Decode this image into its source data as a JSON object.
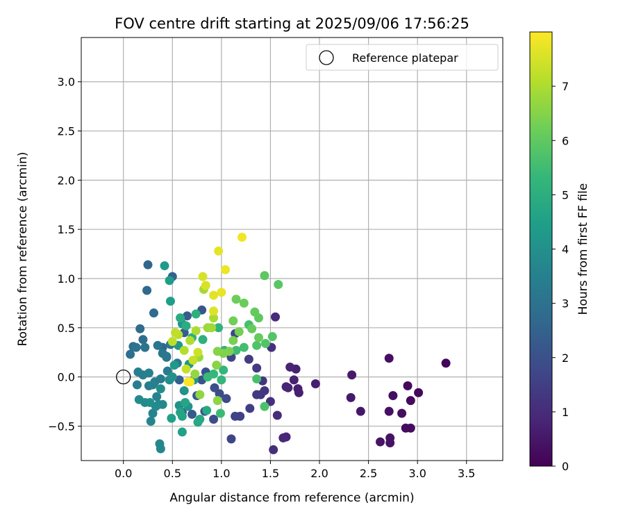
{
  "chart_data": {
    "type": "scatter",
    "title": "FOV centre drift starting at 2025/09/06 17:56:25",
    "xlabel": "Angular distance from reference (arcmin)",
    "ylabel": "Rotation from reference (arcmin)",
    "xlim": [
      -0.43,
      3.87
    ],
    "ylim": [
      -0.85,
      3.45
    ],
    "x_ticks": [
      0.0,
      0.5,
      1.0,
      1.5,
      2.0,
      2.5,
      3.0,
      3.5
    ],
    "x_tick_labels": [
      "0.0",
      "0.5",
      "1.0",
      "1.5",
      "2.0",
      "2.5",
      "3.0",
      "3.5"
    ],
    "y_ticks": [
      -0.5,
      0.0,
      0.5,
      1.0,
      1.5,
      2.0,
      2.5,
      3.0
    ],
    "y_tick_labels": [
      "−0.5",
      "0.0",
      "0.5",
      "1.0",
      "1.5",
      "2.0",
      "2.5",
      "3.0"
    ],
    "grid": true,
    "legend": {
      "position": "top-right",
      "entries": [
        {
          "label": "Reference platepar",
          "marker": "open-circle"
        }
      ]
    },
    "reference_point": {
      "x": 0.0,
      "y": 0.0
    },
    "colorbar": {
      "label": "Hours from first FF file",
      "range": [
        0,
        8
      ],
      "ticks": [
        0,
        1,
        2,
        3,
        4,
        5,
        6,
        7
      ],
      "tick_labels": [
        "0",
        "1",
        "2",
        "3",
        "4",
        "5",
        "6",
        "7"
      ],
      "colormap": "viridis"
    },
    "colormap_stops": [
      "#440154",
      "#482878",
      "#3e4989",
      "#31688e",
      "#26828e",
      "#1f9e89",
      "#35b779",
      "#6ece58",
      "#b5de2b",
      "#fde725"
    ],
    "points": [
      {
        "x": 3.29,
        "y": 0.14,
        "c": 0.1
      },
      {
        "x": 3.01,
        "y": -0.16,
        "c": 0.15
      },
      {
        "x": 2.93,
        "y": -0.24,
        "c": 0.2
      },
      {
        "x": 2.9,
        "y": -0.09,
        "c": 0.2
      },
      {
        "x": 2.93,
        "y": -0.52,
        "c": 0.25
      },
      {
        "x": 2.88,
        "y": -0.52,
        "c": 0.25
      },
      {
        "x": 2.84,
        "y": -0.37,
        "c": 0.3
      },
      {
        "x": 2.75,
        "y": -0.19,
        "c": 0.3
      },
      {
        "x": 2.71,
        "y": 0.19,
        "c": 0.35
      },
      {
        "x": 2.71,
        "y": -0.35,
        "c": 0.35
      },
      {
        "x": 2.72,
        "y": -0.62,
        "c": 0.4
      },
      {
        "x": 2.72,
        "y": -0.67,
        "c": 0.4
      },
      {
        "x": 2.62,
        "y": -0.66,
        "c": 0.45
      },
      {
        "x": 2.42,
        "y": -0.35,
        "c": 0.5
      },
      {
        "x": 2.32,
        "y": -0.21,
        "c": 0.55
      },
      {
        "x": 2.33,
        "y": 0.02,
        "c": 0.6
      },
      {
        "x": 1.96,
        "y": -0.07,
        "c": 0.65
      },
      {
        "x": 1.79,
        "y": -0.16,
        "c": 0.7
      },
      {
        "x": 1.78,
        "y": -0.12,
        "c": 0.7
      },
      {
        "x": 1.76,
        "y": 0.08,
        "c": 0.75
      },
      {
        "x": 1.74,
        "y": -0.03,
        "c": 0.75
      },
      {
        "x": 1.7,
        "y": 0.1,
        "c": 0.8
      },
      {
        "x": 1.68,
        "y": -0.11,
        "c": 0.8
      },
      {
        "x": 1.66,
        "y": -0.1,
        "c": 0.85
      },
      {
        "x": 1.66,
        "y": -0.61,
        "c": 0.85
      },
      {
        "x": 1.63,
        "y": -0.62,
        "c": 0.9
      },
      {
        "x": 1.55,
        "y": 0.61,
        "c": 0.95
      },
      {
        "x": 1.57,
        "y": -0.39,
        "c": 1.0
      },
      {
        "x": 1.53,
        "y": -0.74,
        "c": 1.05
      },
      {
        "x": 1.5,
        "y": -0.25,
        "c": 1.1
      },
      {
        "x": 1.51,
        "y": 0.3,
        "c": 1.15
      },
      {
        "x": 1.44,
        "y": -0.14,
        "c": 1.2
      },
      {
        "x": 1.42,
        "y": -0.04,
        "c": 1.25
      },
      {
        "x": 1.4,
        "y": -0.18,
        "c": 1.3
      },
      {
        "x": 1.36,
        "y": -0.18,
        "c": 1.35
      },
      {
        "x": 1.36,
        "y": 0.09,
        "c": 1.4
      },
      {
        "x": 1.28,
        "y": 0.18,
        "c": 1.45
      },
      {
        "x": 1.29,
        "y": -0.32,
        "c": 1.5
      },
      {
        "x": 1.19,
        "y": -0.4,
        "c": 1.55
      },
      {
        "x": 1.14,
        "y": -0.4,
        "c": 1.6
      },
      {
        "x": 1.1,
        "y": -0.63,
        "c": 1.65
      },
      {
        "x": 1.1,
        "y": 0.2,
        "c": 1.7
      },
      {
        "x": 1.14,
        "y": 0.44,
        "c": 1.75
      },
      {
        "x": 1.05,
        "y": -0.22,
        "c": 1.8
      },
      {
        "x": 0.98,
        "y": -0.17,
        "c": 1.85
      },
      {
        "x": 0.92,
        "y": -0.43,
        "c": 1.9
      },
      {
        "x": 0.93,
        "y": -0.11,
        "c": 1.95
      },
      {
        "x": 0.83,
        "y": -0.35,
        "c": 2.0
      },
      {
        "x": 0.84,
        "y": 0.05,
        "c": 2.05
      },
      {
        "x": 0.8,
        "y": -0.03,
        "c": 2.1
      },
      {
        "x": 0.8,
        "y": 0.68,
        "c": 2.15
      },
      {
        "x": 0.75,
        "y": -0.19,
        "c": 2.2
      },
      {
        "x": 0.7,
        "y": -0.38,
        "c": 2.25
      },
      {
        "x": 0.65,
        "y": 0.62,
        "c": 2.3
      },
      {
        "x": 0.62,
        "y": 0.45,
        "c": 2.35
      },
      {
        "x": 0.6,
        "y": -0.36,
        "c": 2.4
      },
      {
        "x": 0.57,
        "y": -0.03,
        "c": 2.45
      },
      {
        "x": 0.5,
        "y": 1.02,
        "c": 2.5
      },
      {
        "x": 0.44,
        "y": 0.2,
        "c": 2.55
      },
      {
        "x": 0.4,
        "y": 0.3,
        "c": 2.6
      },
      {
        "x": 0.25,
        "y": 1.14,
        "c": 2.65
      },
      {
        "x": 0.24,
        "y": 0.88,
        "c": 2.7
      },
      {
        "x": 0.31,
        "y": 0.65,
        "c": 2.75
      },
      {
        "x": 0.17,
        "y": 0.49,
        "c": 2.8
      },
      {
        "x": 0.2,
        "y": 0.38,
        "c": 2.85
      },
      {
        "x": 0.1,
        "y": 0.31,
        "c": 2.9
      },
      {
        "x": 0.07,
        "y": 0.23,
        "c": 2.95
      },
      {
        "x": 0.13,
        "y": 0.3,
        "c": 3.0
      },
      {
        "x": 0.22,
        "y": 0.3,
        "c": 3.05
      },
      {
        "x": 0.35,
        "y": 0.32,
        "c": 3.1
      },
      {
        "x": 0.4,
        "y": 0.24,
        "c": 3.15
      },
      {
        "x": 0.44,
        "y": 0.21,
        "c": 3.2
      },
      {
        "x": 0.48,
        "y": 0.33,
        "c": 3.2
      },
      {
        "x": 0.55,
        "y": 0.14,
        "c": 3.25
      },
      {
        "x": 0.45,
        "y": 0.06,
        "c": 3.3
      },
      {
        "x": 0.38,
        "y": -0.02,
        "c": 3.3
      },
      {
        "x": 0.32,
        "y": -0.05,
        "c": 3.35
      },
      {
        "x": 0.26,
        "y": -0.09,
        "c": 3.35
      },
      {
        "x": 0.2,
        "y": 0.02,
        "c": 3.4
      },
      {
        "x": 0.14,
        "y": -0.08,
        "c": 3.4
      },
      {
        "x": 0.15,
        "y": 0.05,
        "c": 3.45
      },
      {
        "x": 0.26,
        "y": 0.04,
        "c": 3.5
      },
      {
        "x": 0.3,
        "y": -0.08,
        "c": 3.5
      },
      {
        "x": 0.34,
        "y": -0.2,
        "c": 3.55
      },
      {
        "x": 0.3,
        "y": -0.37,
        "c": 3.6
      },
      {
        "x": 0.28,
        "y": -0.45,
        "c": 3.65
      },
      {
        "x": 0.37,
        "y": -0.68,
        "c": 3.7
      },
      {
        "x": 0.38,
        "y": -0.73,
        "c": 3.7
      },
      {
        "x": 0.4,
        "y": -0.28,
        "c": 3.75
      },
      {
        "x": 0.36,
        "y": -0.28,
        "c": 3.75
      },
      {
        "x": 0.33,
        "y": -0.3,
        "c": 3.8
      },
      {
        "x": 0.16,
        "y": -0.23,
        "c": 3.85
      },
      {
        "x": 0.22,
        "y": -0.26,
        "c": 3.85
      },
      {
        "x": 0.27,
        "y": -0.26,
        "c": 3.9
      },
      {
        "x": 0.38,
        "y": -0.12,
        "c": 3.9
      },
      {
        "x": 0.47,
        "y": -0.03,
        "c": 3.95
      },
      {
        "x": 0.5,
        "y": 0.0,
        "c": 4.0
      },
      {
        "x": 0.57,
        "y": -0.29,
        "c": 4.0
      },
      {
        "x": 0.62,
        "y": -0.14,
        "c": 4.05
      },
      {
        "x": 0.66,
        "y": -0.3,
        "c": 4.1
      },
      {
        "x": 0.72,
        "y": -0.03,
        "c": 4.15
      },
      {
        "x": 0.67,
        "y": 0.13,
        "c": 4.15
      },
      {
        "x": 0.6,
        "y": 0.54,
        "c": 4.2
      },
      {
        "x": 0.56,
        "y": 0.32,
        "c": 4.25
      },
      {
        "x": 0.52,
        "y": 0.12,
        "c": 4.3
      },
      {
        "x": 0.42,
        "y": 1.13,
        "c": 4.35
      },
      {
        "x": 0.47,
        "y": 0.98,
        "c": 4.4
      },
      {
        "x": 0.48,
        "y": 0.77,
        "c": 4.45
      },
      {
        "x": 0.49,
        "y": -0.42,
        "c": 4.5
      },
      {
        "x": 0.6,
        "y": -0.56,
        "c": 4.55
      },
      {
        "x": 0.6,
        "y": -0.4,
        "c": 4.6
      },
      {
        "x": 0.58,
        "y": -0.36,
        "c": 4.65
      },
      {
        "x": 0.63,
        "y": -0.26,
        "c": 4.7
      },
      {
        "x": 0.76,
        "y": -0.46,
        "c": 4.75
      },
      {
        "x": 0.78,
        "y": -0.43,
        "c": 4.8
      },
      {
        "x": 0.85,
        "y": -0.34,
        "c": 4.85
      },
      {
        "x": 0.58,
        "y": 0.6,
        "c": 4.9
      },
      {
        "x": 0.64,
        "y": 0.52,
        "c": 4.95
      },
      {
        "x": 0.7,
        "y": 0.4,
        "c": 5.0
      },
      {
        "x": 0.74,
        "y": 0.64,
        "c": 5.05
      },
      {
        "x": 0.81,
        "y": 0.38,
        "c": 5.1
      },
      {
        "x": 0.97,
        "y": 0.5,
        "c": 5.15
      },
      {
        "x": 1.03,
        "y": 0.27,
        "c": 5.2
      },
      {
        "x": 1.02,
        "y": 0.07,
        "c": 5.25
      },
      {
        "x": 1.0,
        "y": -0.03,
        "c": 5.3
      },
      {
        "x": 0.92,
        "y": 0.03,
        "c": 5.35
      },
      {
        "x": 0.86,
        "y": 0.0,
        "c": 5.4
      },
      {
        "x": 0.99,
        "y": -0.37,
        "c": 5.45
      },
      {
        "x": 1.15,
        "y": 0.27,
        "c": 5.5
      },
      {
        "x": 1.23,
        "y": 0.3,
        "c": 5.55
      },
      {
        "x": 1.28,
        "y": 0.53,
        "c": 5.6
      },
      {
        "x": 1.36,
        "y": -0.02,
        "c": 5.65
      },
      {
        "x": 1.44,
        "y": -0.3,
        "c": 5.7
      },
      {
        "x": 1.36,
        "y": 0.32,
        "c": 5.75
      },
      {
        "x": 1.45,
        "y": 0.34,
        "c": 5.8
      },
      {
        "x": 1.52,
        "y": 0.41,
        "c": 5.85
      },
      {
        "x": 1.58,
        "y": 0.94,
        "c": 5.9
      },
      {
        "x": 1.44,
        "y": 1.03,
        "c": 5.95
      },
      {
        "x": 1.38,
        "y": 0.6,
        "c": 6.0
      },
      {
        "x": 1.34,
        "y": 0.66,
        "c": 6.05
      },
      {
        "x": 1.31,
        "y": 0.49,
        "c": 6.1
      },
      {
        "x": 1.38,
        "y": 0.4,
        "c": 6.1
      },
      {
        "x": 1.23,
        "y": 0.75,
        "c": 6.15
      },
      {
        "x": 1.15,
        "y": 0.79,
        "c": 6.2
      },
      {
        "x": 1.12,
        "y": 0.57,
        "c": 6.25
      },
      {
        "x": 1.18,
        "y": 0.46,
        "c": 6.3
      },
      {
        "x": 1.12,
        "y": 0.37,
        "c": 6.35
      },
      {
        "x": 1.08,
        "y": 0.26,
        "c": 6.4
      },
      {
        "x": 1.02,
        "y": 0.24,
        "c": 6.45
      },
      {
        "x": 0.96,
        "y": 0.26,
        "c": 6.5
      },
      {
        "x": 0.95,
        "y": 0.12,
        "c": 6.55
      },
      {
        "x": 0.96,
        "y": -0.24,
        "c": 6.6
      },
      {
        "x": 0.78,
        "y": -0.18,
        "c": 6.65
      },
      {
        "x": 0.73,
        "y": 0.03,
        "c": 6.7
      },
      {
        "x": 0.77,
        "y": 0.2,
        "c": 6.75
      },
      {
        "x": 0.86,
        "y": 0.5,
        "c": 6.8
      },
      {
        "x": 0.9,
        "y": 0.5,
        "c": 6.85
      },
      {
        "x": 0.82,
        "y": 0.89,
        "c": 6.9
      },
      {
        "x": 0.92,
        "y": 0.6,
        "c": 6.95
      },
      {
        "x": 0.74,
        "y": 0.47,
        "c": 7.0
      },
      {
        "x": 0.68,
        "y": 0.37,
        "c": 7.05
      },
      {
        "x": 0.62,
        "y": 0.27,
        "c": 7.1
      },
      {
        "x": 0.56,
        "y": 0.43,
        "c": 7.15
      },
      {
        "x": 0.5,
        "y": 0.36,
        "c": 7.2
      },
      {
        "x": 0.53,
        "y": 0.45,
        "c": 7.25
      },
      {
        "x": 0.64,
        "y": 0.08,
        "c": 7.3
      },
      {
        "x": 0.71,
        "y": 0.17,
        "c": 7.35
      },
      {
        "x": 0.76,
        "y": 0.25,
        "c": 7.4
      },
      {
        "x": 0.81,
        "y": 1.02,
        "c": 7.5
      },
      {
        "x": 0.84,
        "y": 0.93,
        "c": 7.55
      },
      {
        "x": 0.92,
        "y": 0.67,
        "c": 7.6
      },
      {
        "x": 0.92,
        "y": 0.83,
        "c": 7.65
      },
      {
        "x": 0.97,
        "y": 1.28,
        "c": 7.7
      },
      {
        "x": 1.0,
        "y": 0.86,
        "c": 7.75
      },
      {
        "x": 1.04,
        "y": 1.09,
        "c": 7.8
      },
      {
        "x": 1.21,
        "y": 1.42,
        "c": 7.85
      },
      {
        "x": 0.68,
        "y": -0.05,
        "c": 7.9
      },
      {
        "x": 0.66,
        "y": -0.05,
        "c": 7.95
      }
    ]
  }
}
